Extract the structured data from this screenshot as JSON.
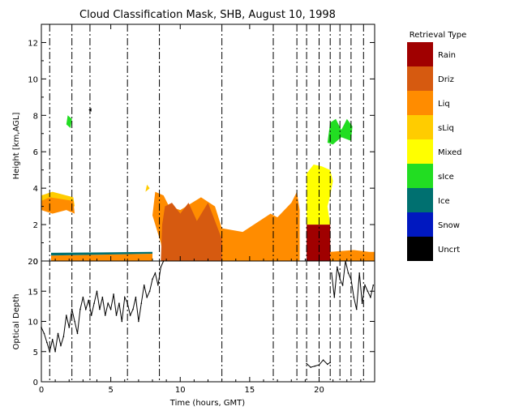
{
  "title": "Cloud Classification Mask, SHB, August 10, 1998",
  "colors": {
    "Rain": "#a00000",
    "Driz": "#d65a10",
    "Liq": "#ff8c00",
    "sLiq": "#ffcc00",
    "Mixed": "#ffff00",
    "sIce": "#22dd22",
    "Ice": "#007070",
    "Snow": "#0018c0",
    "Uncrt": "#000000",
    "text": "#000000",
    "frame": "#000000",
    "background": "#ffffff"
  },
  "legend": {
    "title": "Retrieval Type",
    "items": [
      "Rain",
      "Driz",
      "Liq",
      "sLiq",
      "Mixed",
      "sIce",
      "Ice",
      "Snow",
      "Uncrt"
    ]
  },
  "chart_data": [
    {
      "type": "heatmap",
      "title": "Cloud Classification Mask, SHB, August 10, 1998",
      "xlabel": "",
      "ylabel": "Height [km,AGL]",
      "xlim": [
        0,
        24
      ],
      "ylim": [
        0,
        13
      ],
      "yticks": [
        0,
        2,
        4,
        6,
        8,
        10,
        12
      ],
      "legend_placement": "right",
      "dashed_time_markers": [
        0.6,
        2.2,
        3.5,
        6.2,
        8.5,
        13,
        16.7,
        18.4,
        19.1,
        20,
        20.8,
        21.5,
        22.3,
        23.2
      ],
      "regions": [
        {
          "class": "sLiq",
          "points": [
            [
              0,
              3.1
            ],
            [
              0,
              3.6
            ],
            [
              0.8,
              3.8
            ],
            [
              2.3,
              3.5
            ],
            [
              2.4,
              3.0
            ],
            [
              1.7,
              3.1
            ],
            [
              0.8,
              3.0
            ]
          ]
        },
        {
          "class": "Liq",
          "points": [
            [
              0,
              2.8
            ],
            [
              0,
              3.3
            ],
            [
              0.6,
              3.5
            ],
            [
              2.3,
              3.3
            ],
            [
              2.4,
              2.6
            ],
            [
              1.8,
              2.8
            ],
            [
              0.8,
              2.6
            ]
          ]
        },
        {
          "class": "Liq",
          "points": [
            [
              0.7,
              0
            ],
            [
              0.7,
              0.3
            ],
            [
              8.0,
              0.4
            ],
            [
              8.0,
              0
            ]
          ]
        },
        {
          "class": "sIce",
          "points": [
            [
              1.8,
              7.5
            ],
            [
              1.9,
              8.0
            ],
            [
              2.2,
              7.8
            ],
            [
              2.1,
              7.3
            ]
          ]
        },
        {
          "class": "sLiq",
          "points": [
            [
              7.5,
              3.8
            ],
            [
              7.6,
              4.2
            ],
            [
              7.8,
              4.0
            ]
          ]
        },
        {
          "class": "Liq",
          "points": [
            [
              8.0,
              2.5
            ],
            [
              8.2,
              3.8
            ],
            [
              8.8,
              3.6
            ],
            [
              9.2,
              3.0
            ],
            [
              10.0,
              2.8
            ],
            [
              11.5,
              3.5
            ],
            [
              12.5,
              3.0
            ],
            [
              13.0,
              1.8
            ],
            [
              14.5,
              1.6
            ],
            [
              16.5,
              2.6
            ],
            [
              17.0,
              2.4
            ],
            [
              18.0,
              3.2
            ],
            [
              18.4,
              3.8
            ],
            [
              18.6,
              2.8
            ],
            [
              18.6,
              0
            ],
            [
              8.8,
              0
            ],
            [
              8.6,
              1.0
            ]
          ]
        },
        {
          "class": "Driz",
          "points": [
            [
              8.6,
              0
            ],
            [
              8.7,
              2.0
            ],
            [
              8.9,
              3.0
            ],
            [
              9.4,
              3.2
            ],
            [
              10.0,
              2.6
            ],
            [
              10.6,
              3.2
            ],
            [
              11.2,
              2.2
            ],
            [
              12.0,
              3.2
            ],
            [
              12.6,
              2.0
            ],
            [
              13.0,
              1.2
            ],
            [
              13.0,
              0
            ]
          ]
        },
        {
          "class": "Liq",
          "points": [
            [
              13.0,
              0
            ],
            [
              13.2,
              0.8
            ],
            [
              14.0,
              1.2
            ],
            [
              15.0,
              0.9
            ],
            [
              16.0,
              1.4
            ],
            [
              17.0,
              0.8
            ],
            [
              18.0,
              0.5
            ],
            [
              18.6,
              0.4
            ],
            [
              18.6,
              0
            ]
          ]
        },
        {
          "class": "Mixed",
          "points": [
            [
              19.1,
              2.0
            ],
            [
              19.1,
              4.8
            ],
            [
              19.6,
              5.3
            ],
            [
              20.2,
              5.2
            ],
            [
              20.8,
              5.0
            ],
            [
              21.0,
              4.4
            ],
            [
              20.8,
              3.6
            ],
            [
              20.6,
              3.0
            ],
            [
              20.8,
              2.0
            ]
          ]
        },
        {
          "class": "Rain",
          "points": [
            [
              19.1,
              0
            ],
            [
              19.1,
              2.0
            ],
            [
              20.8,
              2.0
            ],
            [
              20.8,
              0
            ]
          ]
        },
        {
          "class": "Liq",
          "points": [
            [
              20.8,
              0
            ],
            [
              20.8,
              0.5
            ],
            [
              22.5,
              0.6
            ],
            [
              23.6,
              0.5
            ],
            [
              24,
              0.5
            ],
            [
              24,
              0
            ]
          ]
        },
        {
          "class": "sIce",
          "points": [
            [
              20.6,
              6.5
            ],
            [
              20.8,
              7.6
            ],
            [
              21.2,
              7.8
            ],
            [
              21.6,
              7.2
            ],
            [
              22.0,
              7.8
            ],
            [
              22.4,
              7.4
            ],
            [
              22.3,
              6.6
            ],
            [
              21.6,
              6.8
            ],
            [
              21.0,
              6.4
            ]
          ]
        },
        {
          "class": "Uncrt",
          "points": [
            [
              3.4,
              8.3
            ],
            [
              3.6,
              8.4
            ],
            [
              3.6,
              8.2
            ]
          ]
        },
        {
          "class": "Ice",
          "points": [
            [
              0.7,
              0.3
            ],
            [
              0.7,
              0.45
            ],
            [
              8.0,
              0.5
            ],
            [
              8.0,
              0.4
            ]
          ]
        }
      ]
    },
    {
      "type": "line",
      "xlabel": "Time (hours, GMT)",
      "ylabel": "Optical Depth",
      "xlim": [
        0,
        24
      ],
      "ylim": [
        0,
        20
      ],
      "xticks": [
        0,
        5,
        10,
        15,
        20
      ],
      "yticks": [
        0,
        5,
        10,
        15,
        20
      ],
      "series": [
        {
          "name": "",
          "x": [
            0.0,
            0.2,
            0.4,
            0.6,
            0.8,
            1.0,
            1.2,
            1.4,
            1.6,
            1.8,
            2.0,
            2.2,
            2.4,
            2.6,
            2.8,
            3.0,
            3.2,
            3.4,
            3.6,
            3.8,
            4.0,
            4.2,
            4.4,
            4.6,
            4.8,
            5.0,
            5.2,
            5.4,
            5.6,
            5.8,
            6.0,
            6.2,
            6.4,
            6.6,
            6.8,
            7.0,
            7.2,
            7.4,
            7.6,
            7.8,
            8.0,
            8.2,
            8.4,
            8.6,
            8.8
          ],
          "y": [
            9.0,
            8.0,
            6.5,
            5.0,
            7.0,
            5.0,
            8.0,
            6.0,
            7.5,
            11.0,
            9.0,
            12.0,
            10.0,
            8.0,
            12.0,
            14.0,
            12.0,
            13.5,
            11.0,
            13.0,
            15.0,
            12.0,
            14.0,
            11.0,
            13.0,
            12.0,
            14.5,
            11.0,
            13.0,
            10.0,
            14.0,
            13.0,
            11.0,
            12.0,
            14.0,
            10.0,
            13.0,
            16.0,
            14.0,
            15.0,
            17.0,
            18.0,
            16.0,
            19.0,
            20.0
          ]
        },
        {
          "name": "",
          "x": [
            19.1,
            19.4,
            19.7,
            20.0,
            20.3,
            20.6,
            20.8
          ],
          "y": [
            3.0,
            2.4,
            2.6,
            2.8,
            3.6,
            2.9,
            3.2
          ]
        },
        {
          "name": "",
          "x": [
            20.9,
            21.1,
            21.3,
            21.5,
            21.7,
            21.9,
            22.1,
            22.3,
            22.5,
            22.7,
            22.9,
            23.1,
            23.3,
            23.5,
            23.7,
            23.9
          ],
          "y": [
            18.0,
            14.0,
            19.0,
            17.0,
            16.0,
            20.0,
            18.0,
            17.0,
            14.0,
            12.0,
            18.0,
            13.0,
            16.0,
            15.0,
            14.0,
            16.0
          ]
        }
      ]
    }
  ]
}
